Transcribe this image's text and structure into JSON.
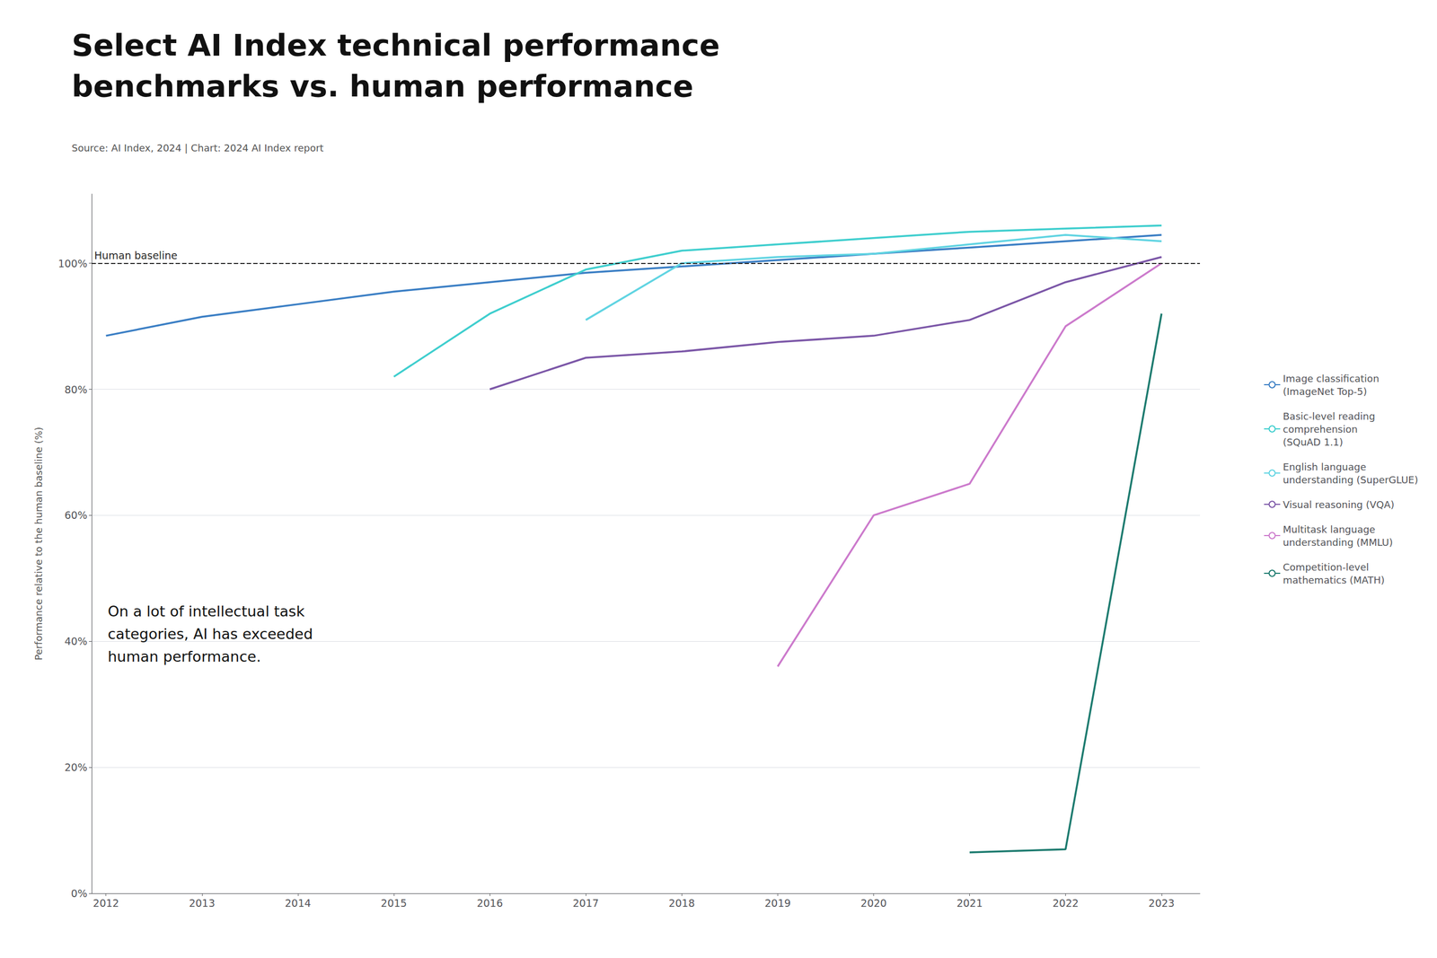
{
  "chart_data": {
    "type": "line",
    "title": "Select AI Index technical performance\nbenchmarks vs. human performance",
    "source": "Source: AI Index, 2024 | Chart: 2024 AI Index report",
    "ylabel": "Performance relative to the human baseline (%)",
    "annotation": "On a lot of intellectual task\ncategories, AI has exceeded\nhuman performance.",
    "baseline": {
      "value": 100,
      "label": "Human baseline"
    },
    "series": [
      {
        "name": "Image classification\n(ImageNet Top-5)",
        "color": "#3A7EC4",
        "x": [
          2012,
          2013,
          2014,
          2015,
          2016,
          2017,
          2018,
          2019,
          2020,
          2021,
          2022,
          2023
        ],
        "values": [
          88.5,
          91.5,
          93.5,
          95.5,
          97.0,
          98.5,
          99.5,
          100.5,
          101.5,
          102.5,
          103.5,
          104.5
        ]
      },
      {
        "name": "Basic-level reading\ncomprehension\n(SQuAD 1.1)",
        "color": "#3ECECE",
        "x": [
          2015,
          2016,
          2017,
          2018,
          2019,
          2020,
          2021,
          2022,
          2023
        ],
        "values": [
          82.0,
          92.0,
          99.0,
          102.0,
          103.0,
          104.0,
          105.0,
          105.5,
          106.0
        ]
      },
      {
        "name": "English language\nunderstanding (SuperGLUE)",
        "color": "#60D4E2",
        "x": [
          2017,
          2018,
          2019,
          2020,
          2021,
          2022,
          2023
        ],
        "values": [
          91.0,
          100.0,
          101.0,
          101.5,
          103.0,
          104.5,
          103.5
        ]
      },
      {
        "name": "Visual reasoning (VQA)",
        "color": "#7B56A7",
        "x": [
          2016,
          2017,
          2018,
          2019,
          2020,
          2021,
          2022,
          2023
        ],
        "values": [
          80.0,
          85.0,
          86.0,
          87.5,
          88.5,
          91.0,
          97.0,
          101.0
        ]
      },
      {
        "name": "Multitask language\nunderstanding (MMLU)",
        "color": "#CC7ACC",
        "x": [
          2019,
          2020,
          2021,
          2022,
          2023
        ],
        "values": [
          36.0,
          60.0,
          65.0,
          90.0,
          100.0
        ]
      },
      {
        "name": "Competition-level\nmathematics (MATH)",
        "color": "#1B7A6E",
        "x": [
          2021,
          2022,
          2023
        ],
        "values": [
          6.5,
          7.0,
          92.0
        ]
      }
    ],
    "xlim": [
      2011.85,
      2023.4
    ],
    "ylim": [
      0,
      111
    ],
    "xticks": [
      2012,
      2013,
      2014,
      2015,
      2016,
      2017,
      2018,
      2019,
      2020,
      2021,
      2022,
      2023
    ],
    "yticks": [
      {
        "value": 0,
        "label": "0%"
      },
      {
        "value": 20,
        "label": "20%"
      },
      {
        "value": 40,
        "label": "40%"
      },
      {
        "value": 60,
        "label": "60%"
      },
      {
        "value": 80,
        "label": "80%"
      },
      {
        "value": 100,
        "label": "100%"
      }
    ],
    "grid": true,
    "legend": "right"
  }
}
